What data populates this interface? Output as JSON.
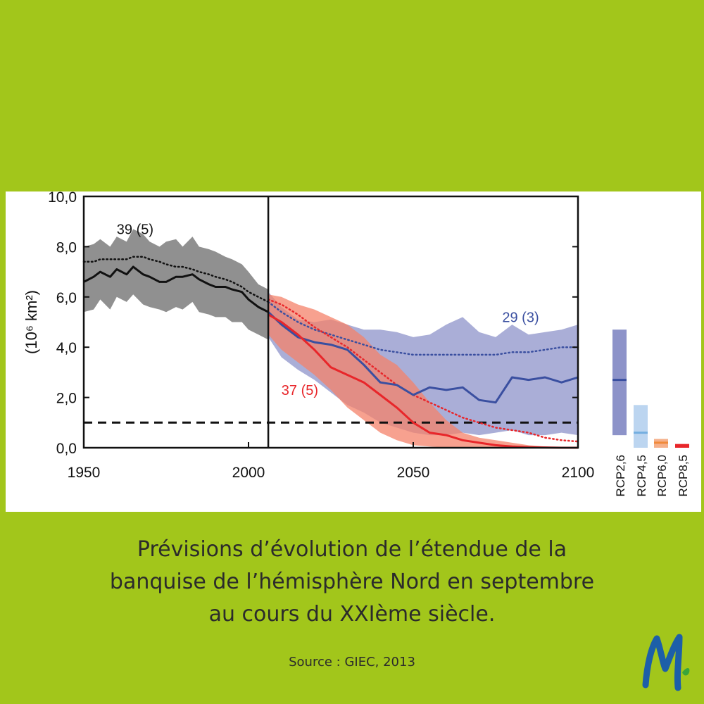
{
  "chart_data": {
    "type": "line",
    "ylabel": "(10⁶ km²)",
    "xlim": [
      1950,
      2100
    ],
    "ylim": [
      0,
      10
    ],
    "xticks": [
      "1950",
      "2000",
      "2050",
      "2100"
    ],
    "yticks": [
      "0,0",
      "2,0",
      "4,0",
      "6,0",
      "8,0",
      "10,0"
    ],
    "vertical_line_x": 2006,
    "reference_line_y": 1.0,
    "annotations": [
      {
        "text": "39 (5)",
        "x": 1960,
        "y": 8.5,
        "color": "#111111"
      },
      {
        "text": "29 (3)",
        "x": 2077,
        "y": 5.0,
        "color": "#3a4fa0"
      },
      {
        "text": "37 (5)",
        "x": 2010,
        "y": 2.1,
        "color": "#e8262a"
      }
    ],
    "series": [
      {
        "key": "historical",
        "color": "#111111",
        "band_color": "#909090",
        "x": [
          1950,
          1953,
          1955,
          1958,
          1960,
          1963,
          1965,
          1968,
          1970,
          1973,
          1975,
          1978,
          1980,
          1983,
          1985,
          1988,
          1990,
          1993,
          1995,
          1998,
          2000,
          2003,
          2006
        ],
        "mean": [
          6.6,
          6.8,
          7.0,
          6.8,
          7.1,
          6.9,
          7.2,
          6.9,
          6.8,
          6.6,
          6.6,
          6.8,
          6.8,
          6.9,
          6.7,
          6.5,
          6.4,
          6.4,
          6.3,
          6.2,
          5.9,
          5.6,
          5.4
        ],
        "upper": [
          8.0,
          8.1,
          8.3,
          8.0,
          8.4,
          8.2,
          8.7,
          8.5,
          8.2,
          8.0,
          8.2,
          8.3,
          8.0,
          8.4,
          8.0,
          7.9,
          7.8,
          7.6,
          7.5,
          7.3,
          7.0,
          6.5,
          6.3
        ],
        "lower": [
          5.4,
          5.5,
          5.9,
          5.5,
          6.0,
          5.8,
          6.1,
          5.7,
          5.6,
          5.5,
          5.4,
          5.6,
          5.5,
          5.8,
          5.4,
          5.3,
          5.2,
          5.2,
          5.0,
          5.0,
          4.7,
          4.5,
          4.3
        ],
        "model_mean": [
          7.4,
          7.4,
          7.5,
          7.5,
          7.5,
          7.5,
          7.6,
          7.6,
          7.5,
          7.4,
          7.3,
          7.2,
          7.2,
          7.1,
          7.0,
          6.9,
          6.8,
          6.7,
          6.6,
          6.4,
          6.2,
          6.0,
          5.8
        ]
      },
      {
        "key": "rcp26",
        "color": "#3a4fa0",
        "band_color": "#8d93c9",
        "x": [
          2006,
          2010,
          2015,
          2020,
          2025,
          2030,
          2035,
          2040,
          2045,
          2050,
          2055,
          2060,
          2065,
          2070,
          2075,
          2080,
          2085,
          2090,
          2095,
          2100
        ],
        "mean": [
          5.4,
          4.9,
          4.4,
          4.2,
          4.1,
          3.9,
          3.3,
          2.6,
          2.5,
          2.1,
          2.4,
          2.3,
          2.4,
          1.9,
          1.8,
          2.8,
          2.7,
          2.8,
          2.6,
          2.8
        ],
        "upper": [
          6.2,
          5.6,
          5.1,
          5.0,
          5.1,
          4.9,
          4.7,
          4.7,
          4.6,
          4.4,
          4.5,
          4.9,
          5.2,
          4.6,
          4.4,
          4.9,
          4.5,
          4.6,
          4.7,
          4.9
        ],
        "lower": [
          4.4,
          3.6,
          3.1,
          2.7,
          2.2,
          1.7,
          1.4,
          1.0,
          0.8,
          0.6,
          0.5,
          0.5,
          0.6,
          0.5,
          0.6,
          0.7,
          0.5,
          0.5,
          0.6,
          0.5
        ],
        "model_mean": [
          5.8,
          5.4,
          5.0,
          4.7,
          4.5,
          4.3,
          4.1,
          3.9,
          3.8,
          3.7,
          3.7,
          3.7,
          3.7,
          3.7,
          3.7,
          3.8,
          3.8,
          3.9,
          4.0,
          4.0
        ]
      },
      {
        "key": "rcp85",
        "color": "#e8262a",
        "band_color": "#f4826a",
        "x": [
          2006,
          2010,
          2015,
          2020,
          2025,
          2030,
          2035,
          2040,
          2045,
          2050,
          2055,
          2060,
          2065,
          2070,
          2075,
          2080,
          2085,
          2090,
          2095,
          2100
        ],
        "mean": [
          5.3,
          5.0,
          4.5,
          3.9,
          3.2,
          2.9,
          2.6,
          2.1,
          1.6,
          1.0,
          0.6,
          0.5,
          0.3,
          0.2,
          0.1,
          0.05,
          0.02,
          0.01,
          0.0,
          0.0
        ],
        "upper": [
          6.1,
          6.0,
          5.7,
          5.5,
          5.2,
          4.9,
          4.4,
          3.7,
          3.3,
          2.6,
          1.8,
          1.1,
          0.6,
          0.4,
          0.3,
          0.2,
          0.1,
          0.05,
          0.02,
          0.0
        ],
        "lower": [
          4.5,
          3.9,
          3.4,
          2.9,
          2.3,
          1.6,
          1.1,
          0.6,
          0.3,
          0.1,
          0.05,
          0.0,
          0.0,
          0.0,
          0.0,
          0.0,
          0.0,
          0.0,
          0.0,
          0.0
        ],
        "model_mean": [
          5.9,
          5.7,
          5.3,
          4.8,
          4.4,
          4.0,
          3.5,
          3.0,
          2.5,
          2.1,
          1.8,
          1.5,
          1.2,
          1.0,
          0.8,
          0.7,
          0.6,
          0.4,
          0.3,
          0.25
        ]
      }
    ],
    "scenarios": [
      {
        "label": "RCP2,6",
        "range": [
          0.5,
          4.7
        ],
        "mean": 2.7,
        "bar_color": "#8d93c9",
        "mean_color": "#3a4fa0"
      },
      {
        "label": "RCP4,5",
        "range": [
          0.0,
          1.7
        ],
        "mean": 0.6,
        "bar_color": "#bcd5f0",
        "mean_color": "#74aee0"
      },
      {
        "label": "RCP6,0",
        "range": [
          0.0,
          0.35
        ],
        "mean": 0.2,
        "bar_color": "#f5b08a",
        "mean_color": "#f08a3a"
      },
      {
        "label": "RCP8,5",
        "range": [
          0.0,
          0.15
        ],
        "mean": 0.08,
        "bar_color": "#e8262a",
        "mean_color": "#e8262a"
      }
    ]
  },
  "caption": {
    "line1": "Prévisions d’évolution de l’étendue de la",
    "line2": "banquise de l’hémisphère Nord en septembre",
    "line3": "au cours du XXIème siècle."
  },
  "source": "Source : GIEC, 2013"
}
